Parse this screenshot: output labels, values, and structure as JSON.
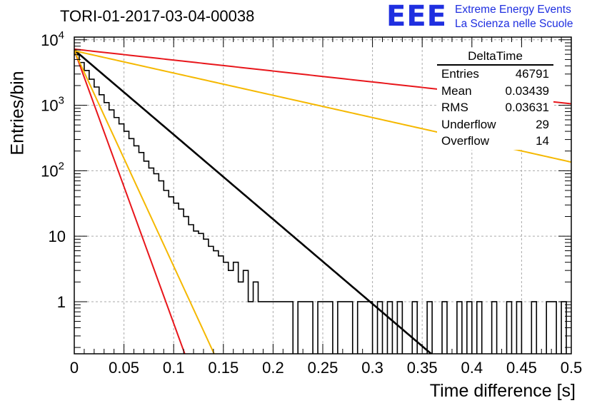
{
  "header": {
    "title": "TORI-01-2017-03-04-00038",
    "logo": "EEE",
    "logo_line1": "Extreme Energy Events",
    "logo_line2": "La Scienza nelle Scuole"
  },
  "stats_box": {
    "name": "DeltaTime",
    "rows": [
      {
        "label": "Entries",
        "value": "46791"
      },
      {
        "label": "Mean",
        "value": "0.03439"
      },
      {
        "label": "RMS",
        "value": "0.03631"
      },
      {
        "label": "Underflow",
        "value": "29"
      },
      {
        "label": "Overflow",
        "value": "14"
      }
    ]
  },
  "chart_data": {
    "type": "line",
    "title": "TORI-01-2017-03-04-00038",
    "xlabel": "Time difference [s]",
    "ylabel": "Entries/bin",
    "xlim": [
      0,
      0.5
    ],
    "ylim": [
      0.16,
      11000
    ],
    "yscale": "log",
    "grid": true,
    "x_ticks": [
      "0",
      "0.05",
      "0.1",
      "0.15",
      "0.2",
      "0.25",
      "0.3",
      "0.35",
      "0.4",
      "0.45",
      "0.5"
    ],
    "y_ticks": [
      "1",
      "10",
      "10^2",
      "10^3",
      "10^4"
    ],
    "histogram": {
      "bin_width": 0.005,
      "color": "#000000",
      "values": [
        5900,
        4500,
        3400,
        2500,
        1900,
        1450,
        1100,
        850,
        650,
        520,
        400,
        310,
        240,
        190,
        140,
        110,
        90,
        70,
        50,
        40,
        32,
        26,
        20,
        15,
        12,
        11,
        9,
        7,
        6,
        5,
        4,
        3,
        4,
        2,
        3,
        1,
        2,
        1,
        1,
        1,
        1,
        1,
        1,
        1,
        0,
        1,
        1,
        1,
        0,
        1,
        1,
        1,
        0,
        1,
        1,
        1,
        0,
        1,
        1,
        1,
        0,
        1,
        0,
        1,
        0,
        1,
        0,
        0,
        1,
        0,
        0,
        1,
        0,
        0,
        1,
        0,
        0,
        1,
        0,
        1,
        0,
        1,
        0,
        0,
        1,
        0,
        0,
        1,
        0,
        1,
        0,
        0,
        1,
        0,
        0,
        1,
        1,
        0,
        1,
        0
      ]
    },
    "series": [
      {
        "color": "#000000",
        "type": "exp",
        "A": 7000,
        "tau": 0.0336
      },
      {
        "color": "#e8161b",
        "type": "exp",
        "A": 7000,
        "tau": 0.0104
      },
      {
        "color": "#f5b800",
        "type": "exp",
        "A": 6800,
        "tau": 0.0132
      },
      {
        "color": "#e8161b",
        "type": "exp",
        "A": 7200,
        "tau": 0.26
      },
      {
        "color": "#f5b800",
        "type": "exp",
        "A": 6800,
        "tau": 0.1277
      }
    ]
  }
}
